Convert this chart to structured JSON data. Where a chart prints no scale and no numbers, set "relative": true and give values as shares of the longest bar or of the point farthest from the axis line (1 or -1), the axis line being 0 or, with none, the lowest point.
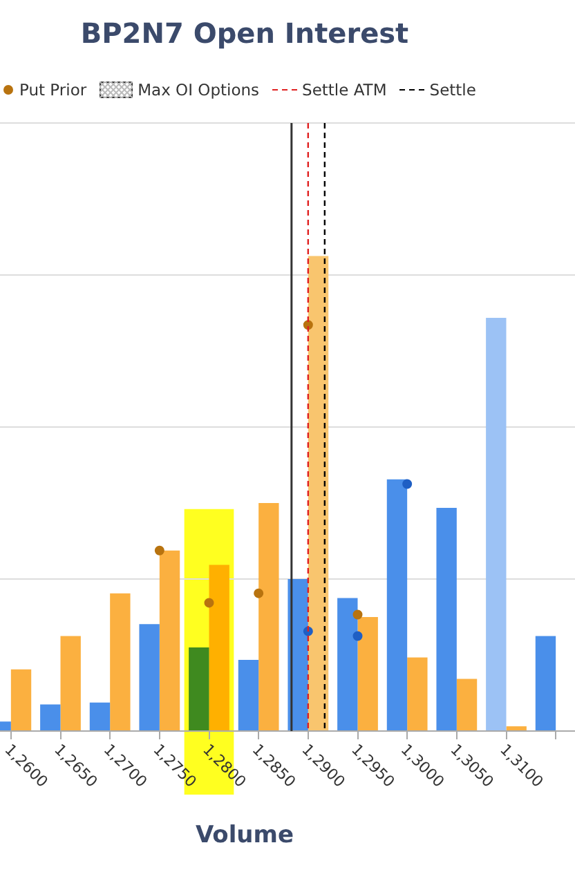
{
  "chart_data": {
    "type": "bar",
    "title": "BP2N7 Open Interest",
    "xlabel": "Volume",
    "relative": true,
    "grid": "y",
    "legend": "top",
    "marker": "circle",
    "categories": [
      "1,2600",
      "1,2650",
      "1,2700",
      "1,2750",
      "1,2800",
      "1,2850",
      "1,2900",
      "1,2950",
      "1,3000",
      "1,3050",
      "1,3100",
      null
    ],
    "series": [
      {
        "color": "#4a8fea",
        "colors": [
          "#4a8fea",
          "#4a8fea",
          "#4a8fea",
          "#4a8fea",
          "#3f8a1f",
          "#4a8fea",
          "#4a8fea",
          "#4a8fea",
          "#4a8fea",
          "#4a8fea",
          "#9cc2f5",
          "#4a8fea"
        ],
        "values": [
          0.02,
          0.056,
          0.06,
          0.225,
          0.176,
          0.15,
          0.32,
          0.28,
          0.53,
          0.47,
          0.87,
          0.2
        ]
      },
      {
        "color": "#fbb040",
        "colors": [
          "#fbb040",
          "#fbb040",
          "#fbb040",
          "#fbb040",
          "#ffb000",
          "#fbb040",
          "#f9c56e",
          "#fbb040",
          "#fbb040",
          "#fbb040",
          "#fbb040",
          "#fbb040"
        ],
        "values": [
          0.13,
          0.2,
          0.29,
          0.38,
          0.35,
          0.48,
          1,
          0.24,
          0.155,
          0.11,
          0.01,
          null
        ]
      },
      {
        "type": "scatter",
        "color": "#1f5fc4",
        "x": [
          "1,2900",
          "1,2950",
          "1,3000"
        ],
        "values": [
          0.21,
          0.2,
          0.52
        ]
      },
      {
        "type": "scatter",
        "name": "Put Prior",
        "color": "#b8730f",
        "x": [
          "1,2750",
          "1,2800",
          "1,2850",
          "1,2900",
          "1,2950"
        ],
        "values": [
          0.38,
          0.27,
          0.29,
          0.855,
          0.245
        ]
      }
    ],
    "ref_lines": [
      {
        "axis": "x",
        "value": "1,2900",
        "color": "#333333",
        "line_style": "solid"
      },
      {
        "axis": "x",
        "value": "1,2900",
        "label": "Settle ATM",
        "color": "#e02020",
        "line_style": "dashed"
      },
      {
        "axis": "x",
        "value": "1,2900",
        "label": "Settle",
        "color": "#000000",
        "line_style": "dashed"
      }
    ],
    "bands": [
      {
        "axis": "x",
        "from": "1,2800",
        "to": "1,2800",
        "color": "#ffff20"
      }
    ],
    "annotations": [
      "Max OI Options"
    ]
  }
}
